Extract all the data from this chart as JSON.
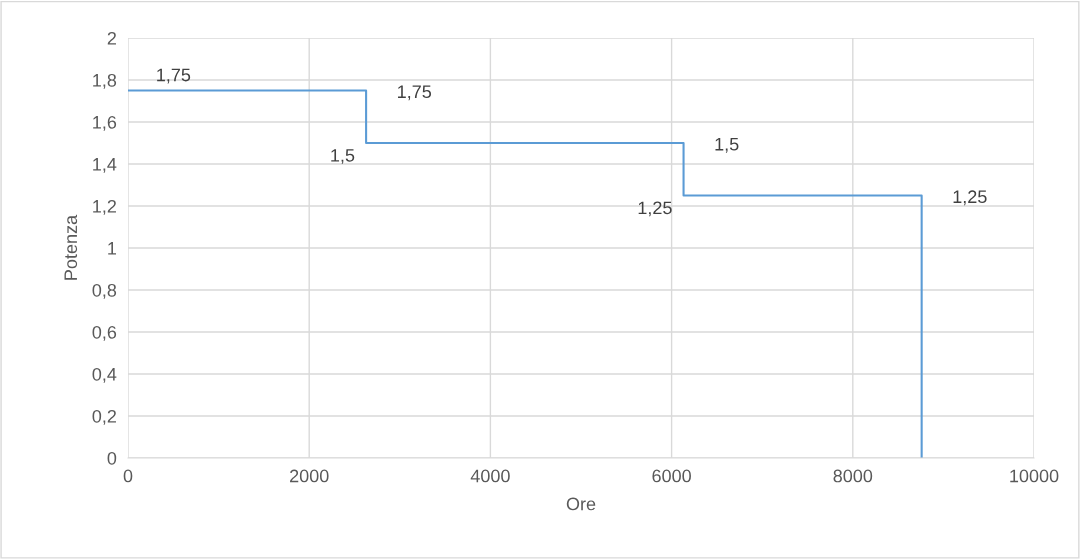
{
  "chart_data": {
    "type": "line",
    "xlabel": "Ore",
    "ylabel": "Potenza",
    "x": [
      0,
      2628,
      2628,
      6132,
      6132,
      8760,
      8760
    ],
    "series": [
      {
        "color": "#5b9bd5",
        "values": [
          1.75,
          1.75,
          1.5,
          1.5,
          1.25,
          1.25,
          0
        ],
        "value_labels": [
          "1,75",
          "1,75",
          "1,5",
          "1,5",
          "1,25",
          "1,25",
          null
        ]
      }
    ],
    "xlim": [
      0,
      10000
    ],
    "xticks": [
      0,
      2000,
      4000,
      6000,
      8000,
      10000
    ],
    "ylim": [
      0,
      2
    ],
    "yticks": [
      0,
      {
        "value": 0.2,
        "label": "0,2"
      },
      {
        "value": 0.4,
        "label": "0,4"
      },
      {
        "value": 0.6,
        "label": "0,6"
      },
      {
        "value": 0.8,
        "label": "0,8"
      },
      1,
      {
        "value": 1.2,
        "label": "1,2"
      },
      {
        "value": 1.4,
        "label": "1,4"
      },
      {
        "value": 1.6,
        "label": "1,6"
      },
      {
        "value": 1.8,
        "label": "1,8"
      },
      2
    ],
    "grid": true,
    "marker": "none",
    "line_style": "solid",
    "legend": false
  }
}
